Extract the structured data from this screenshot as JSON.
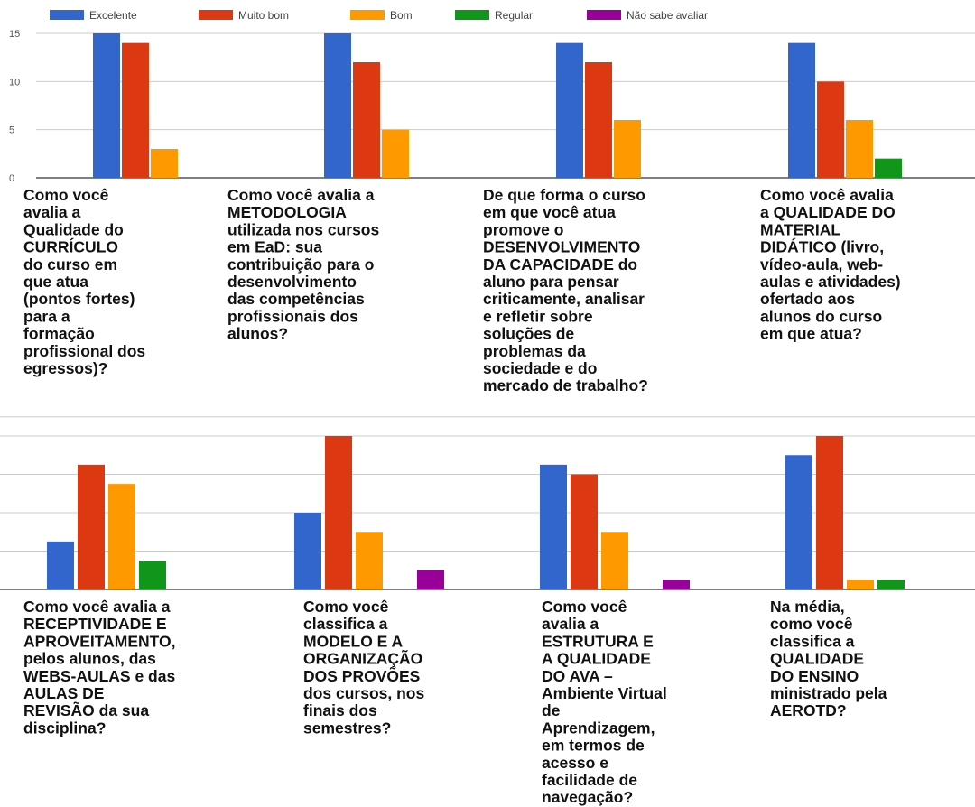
{
  "chart_data": {
    "type": "bar",
    "legend_position": "top-left",
    "grid": true,
    "series": [
      {
        "name": "Excelente",
        "color": "#3366cc"
      },
      {
        "name": "Muito bom",
        "color": "#dc3912"
      },
      {
        "name": "Bom",
        "color": "#ff9900"
      },
      {
        "name": "Regular",
        "color": "#109618"
      },
      {
        "name": "Não sabe avaliar",
        "color": "#990099"
      }
    ],
    "panels": [
      {
        "ylim": [
          0,
          15
        ],
        "yticks": [
          0,
          5,
          10,
          15
        ],
        "categories": [
          {
            "label": [
              "Como você",
              "avalia a",
              "Qualidade do",
              "CURRÍCULO",
              "do curso em",
              "que atua",
              "(pontos fortes)",
              "para a",
              "formação",
              "profissional dos",
              "egressos)?"
            ],
            "values": [
              15,
              14,
              3,
              0,
              0
            ]
          },
          {
            "label": [
              "Como você avalia a",
              "METODOLOGIA",
              "utilizada nos cursos",
              "em EaD: sua",
              "contribuição para o",
              "desenvolvimento",
              "das competências",
              "profissionais dos",
              "alunos?"
            ],
            "values": [
              15,
              12,
              5,
              0,
              0
            ]
          },
          {
            "label": [
              "De que forma o curso",
              "em que você atua",
              "promove o",
              "DESENVOLVIMENTO",
              "DA CAPACIDADE do",
              "aluno para pensar",
              "criticamente, analisar",
              "e refletir sobre",
              "soluções de",
              "problemas da",
              "sociedade e do",
              "mercado de trabalho?"
            ],
            "values": [
              14,
              12,
              6,
              0,
              0
            ]
          },
          {
            "label": [
              "Como você avalia",
              "a QUALIDADE DO",
              "MATERIAL",
              "DIDÁTICO (livro,",
              "vídeo-aula, web-",
              "aulas e atividades)",
              "ofertado aos",
              "alunos do curso",
              "em que atua?"
            ],
            "values": [
              14,
              10,
              6,
              2,
              0
            ]
          }
        ]
      },
      {
        "ylim": [
          0,
          16
        ],
        "categories": [
          {
            "label": [
              "Como você avalia a",
              "RECEPTIVIDADE E",
              "APROVEITAMENTO,",
              "pelos alunos, das",
              "WEBS-AULAS e das",
              "AULAS DE",
              "REVISÃO da sua",
              "disciplina?"
            ],
            "values": [
              5,
              13,
              11,
              3,
              0
            ]
          },
          {
            "label": [
              "Como você",
              "classifica a",
              "MODELO E A",
              "ORGANIZAÇÃO",
              "DOS PROVÕES",
              "dos cursos, nos",
              "finais dos",
              "semestres?"
            ],
            "values": [
              8,
              16,
              6,
              0,
              2
            ]
          },
          {
            "label": [
              "Como você",
              "avalia a",
              "ESTRUTURA E",
              "A QUALIDADE",
              "DO AVA –",
              "Ambiente Virtual",
              "de",
              "Aprendizagem,",
              "em termos de",
              "acesso e",
              "facilidade de",
              "navegação?"
            ],
            "values": [
              13,
              12,
              6,
              0,
              1
            ]
          },
          {
            "label": [
              "Na média,",
              "como você",
              "classifica a",
              "QUALIDADE",
              "DO ENSINO",
              "ministrado pela",
              "AEROTD?"
            ],
            "values": [
              14,
              16,
              1,
              1,
              0
            ]
          }
        ]
      }
    ]
  }
}
